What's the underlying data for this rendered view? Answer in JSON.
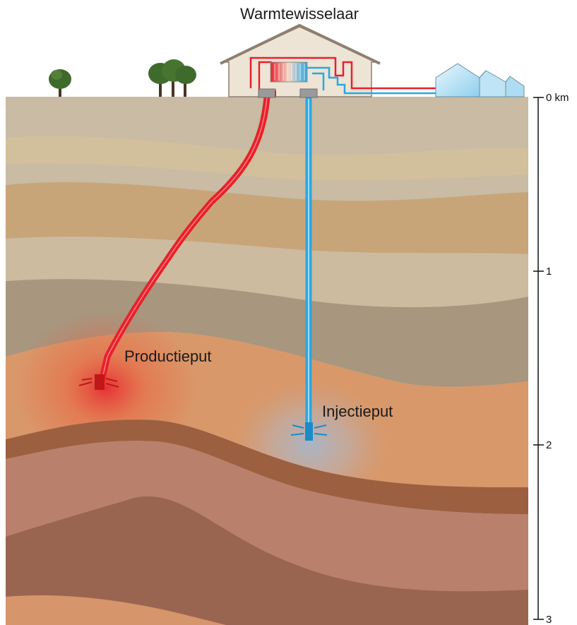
{
  "labels": {
    "heat_exchanger": "Warmtewisselaar",
    "production_well": "Productieput",
    "injection_well": "Injectieput"
  },
  "depth_scale": {
    "ticks": [
      {
        "value": 0,
        "label": "0 km"
      },
      {
        "value": 1,
        "label": "1"
      },
      {
        "value": 2,
        "label": "2"
      },
      {
        "value": 3,
        "label": "3"
      }
    ]
  },
  "colors": {
    "hot_pipe": "#e8202a",
    "cold_pipe": "#2aa7e0",
    "sky": "#ffffff",
    "ground_top": "#c8b8a0",
    "rock_dark": "#8b5a44"
  },
  "icons": [
    "tree-icon",
    "house-icon",
    "greenhouse-icon"
  ]
}
